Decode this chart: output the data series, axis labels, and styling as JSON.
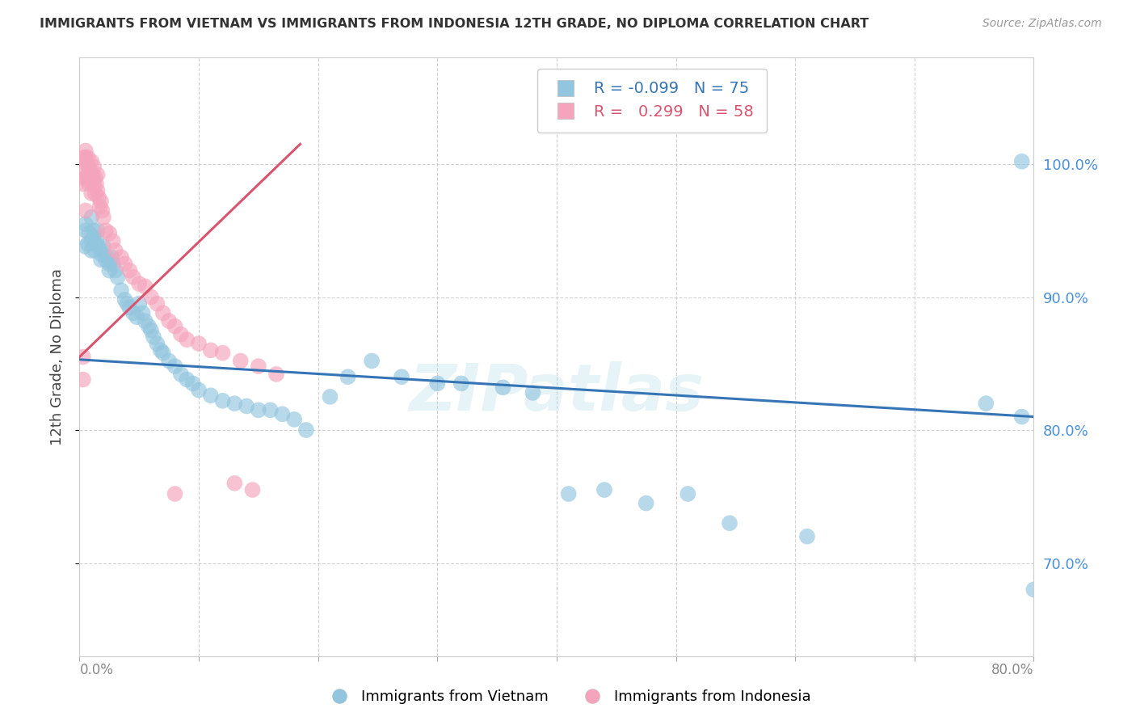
{
  "title": "IMMIGRANTS FROM VIETNAM VS IMMIGRANTS FROM INDONESIA 12TH GRADE, NO DIPLOMA CORRELATION CHART",
  "source": "Source: ZipAtlas.com",
  "ylabel": "12th Grade, No Diploma",
  "xlim": [
    0.0,
    0.8
  ],
  "ylim": [
    0.63,
    1.08
  ],
  "blue_R": -0.099,
  "blue_N": 75,
  "pink_R": 0.299,
  "pink_N": 58,
  "blue_color": "#92c5de",
  "pink_color": "#f4a4bc",
  "blue_line_color": "#3575b5",
  "pink_line_color": "#d9546e",
  "background_color": "#ffffff",
  "grid_color": "#cccccc",
  "watermark": "ZIPatlas",
  "legend_label_blue": "Immigrants from Vietnam",
  "legend_label_pink": "Immigrants from Indonesia",
  "blue_line_x0": 0.0,
  "blue_line_y0": 0.853,
  "blue_line_x1": 0.8,
  "blue_line_y1": 0.81,
  "pink_line_x0": 0.0,
  "pink_line_y0": 0.855,
  "pink_line_x1": 0.185,
  "pink_line_y1": 1.015,
  "blue_scatter_x": [
    0.005,
    0.005,
    0.005,
    0.007,
    0.008,
    0.01,
    0.01,
    0.01,
    0.012,
    0.012,
    0.013,
    0.013,
    0.014,
    0.015,
    0.016,
    0.018,
    0.018,
    0.019,
    0.02,
    0.022,
    0.023,
    0.025,
    0.025,
    0.027,
    0.028,
    0.03,
    0.032,
    0.035,
    0.038,
    0.04,
    0.042,
    0.045,
    0.048,
    0.05,
    0.053,
    0.055,
    0.058,
    0.06,
    0.062,
    0.065,
    0.068,
    0.07,
    0.075,
    0.08,
    0.085,
    0.09,
    0.095,
    0.1,
    0.11,
    0.12,
    0.13,
    0.14,
    0.15,
    0.16,
    0.17,
    0.18,
    0.19,
    0.21,
    0.225,
    0.245,
    0.27,
    0.3,
    0.32,
    0.355,
    0.38,
    0.41,
    0.44,
    0.475,
    0.51,
    0.545,
    0.61,
    0.76,
    0.79,
    0.79,
    0.8
  ],
  "blue_scatter_y": [
    0.938,
    0.955,
    0.95,
    0.94,
    0.948,
    0.96,
    0.942,
    0.935,
    0.95,
    0.945,
    0.94,
    0.935,
    0.943,
    0.95,
    0.938,
    0.935,
    0.928,
    0.932,
    0.938,
    0.928,
    0.93,
    0.925,
    0.92,
    0.93,
    0.925,
    0.92,
    0.915,
    0.905,
    0.898,
    0.895,
    0.892,
    0.888,
    0.885,
    0.895,
    0.888,
    0.882,
    0.878,
    0.875,
    0.87,
    0.865,
    0.86,
    0.858,
    0.852,
    0.848,
    0.842,
    0.838,
    0.835,
    0.83,
    0.826,
    0.822,
    0.82,
    0.818,
    0.815,
    0.815,
    0.812,
    0.808,
    0.8,
    0.825,
    0.84,
    0.852,
    0.84,
    0.835,
    0.835,
    0.832,
    0.828,
    0.752,
    0.755,
    0.745,
    0.752,
    0.73,
    0.72,
    0.82,
    0.81,
    1.002,
    0.68
  ],
  "pink_scatter_x": [
    0.003,
    0.004,
    0.004,
    0.005,
    0.005,
    0.005,
    0.006,
    0.006,
    0.007,
    0.007,
    0.008,
    0.008,
    0.009,
    0.01,
    0.01,
    0.01,
    0.011,
    0.012,
    0.012,
    0.013,
    0.013,
    0.014,
    0.015,
    0.015,
    0.016,
    0.017,
    0.018,
    0.019,
    0.02,
    0.022,
    0.025,
    0.028,
    0.03,
    0.035,
    0.038,
    0.042,
    0.045,
    0.05,
    0.055,
    0.06,
    0.065,
    0.07,
    0.075,
    0.08,
    0.085,
    0.09,
    0.1,
    0.11,
    0.12,
    0.135,
    0.15,
    0.165,
    0.003,
    0.003,
    0.13,
    0.145,
    0.005,
    0.08
  ],
  "pink_scatter_y": [
    0.985,
    1.005,
    0.995,
    1.01,
    1.005,
    0.99,
    1.0,
    0.988,
    1.005,
    0.992,
    0.998,
    0.985,
    0.995,
    1.002,
    0.99,
    0.978,
    0.992,
    0.998,
    0.985,
    0.99,
    0.978,
    0.985,
    0.992,
    0.98,
    0.975,
    0.968,
    0.972,
    0.965,
    0.96,
    0.95,
    0.948,
    0.942,
    0.935,
    0.93,
    0.925,
    0.92,
    0.915,
    0.91,
    0.908,
    0.9,
    0.895,
    0.888,
    0.882,
    0.878,
    0.872,
    0.868,
    0.865,
    0.86,
    0.858,
    0.852,
    0.848,
    0.842,
    0.855,
    0.838,
    0.76,
    0.755,
    0.965,
    0.752
  ]
}
